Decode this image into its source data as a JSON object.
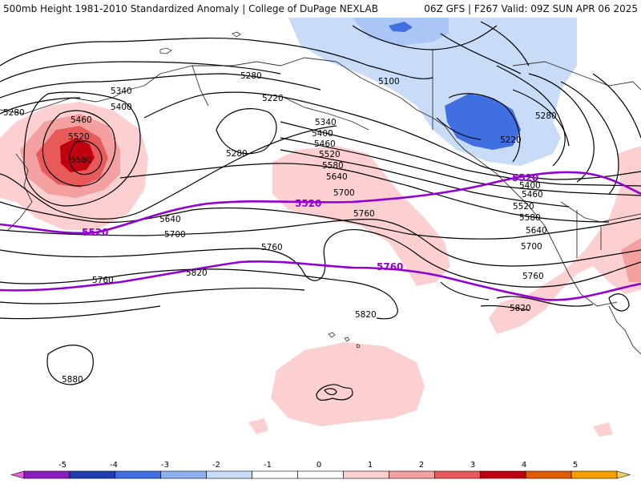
{
  "header": {
    "left_title": "500mb Height 1981-2010 Standardized Anomaly | College of DuPage NEXLAB",
    "right_title": "06Z GFS | F267 Valid: 09Z SUN APR 06 2025"
  },
  "legend": {
    "ticks": [
      "-5",
      "-4",
      "-3",
      "-2",
      "-1",
      "0",
      "1",
      "2",
      "3",
      "4",
      "5"
    ],
    "colors": [
      "#e060e0",
      "#8a1fc0",
      "#1f3fb0",
      "#3f6fe0",
      "#8fb0f0",
      "#c8dcf8",
      "#ffffff",
      "#ffffff",
      "#fcd0d0",
      "#f4a0a0",
      "#e85a5a",
      "#c00010",
      "#e05a00",
      "#f4a000",
      "#f8d060"
    ]
  },
  "contour_labels": {
    "c5340a": "5340",
    "c5400a": "5400",
    "c5460a": "5460",
    "c5520a": "5520",
    "c5580a": "5580",
    "c5280a": "5280",
    "c5220a": "5220",
    "c5280b": "5280",
    "c5280c": "5280",
    "c5340b": "5340",
    "c5400b": "5400",
    "c5460b": "5460",
    "c5520b": "5520",
    "c5580b": "5580",
    "c5640a": "5640",
    "c5700a": "5700",
    "c5760a": "5760",
    "c5100": "5100",
    "c5220b": "5220",
    "c5280d": "5280",
    "c5400c": "5400",
    "c5460c": "5460",
    "c5520c": "5520",
    "c5580c": "5580",
    "c5640b": "5640",
    "c5700b": "5700",
    "c5760b": "5760",
    "c5640c": "5640",
    "c5700c": "5700",
    "c5760c": "5760",
    "c5820a": "5820",
    "c5760d": "5760",
    "c5820b": "5820",
    "c5820c": "5820",
    "c5880": "5880"
  },
  "purple_labels": {
    "p5520a": "5520",
    "p5520b": "5520",
    "p5520c": "5520",
    "p5760": "5760"
  }
}
